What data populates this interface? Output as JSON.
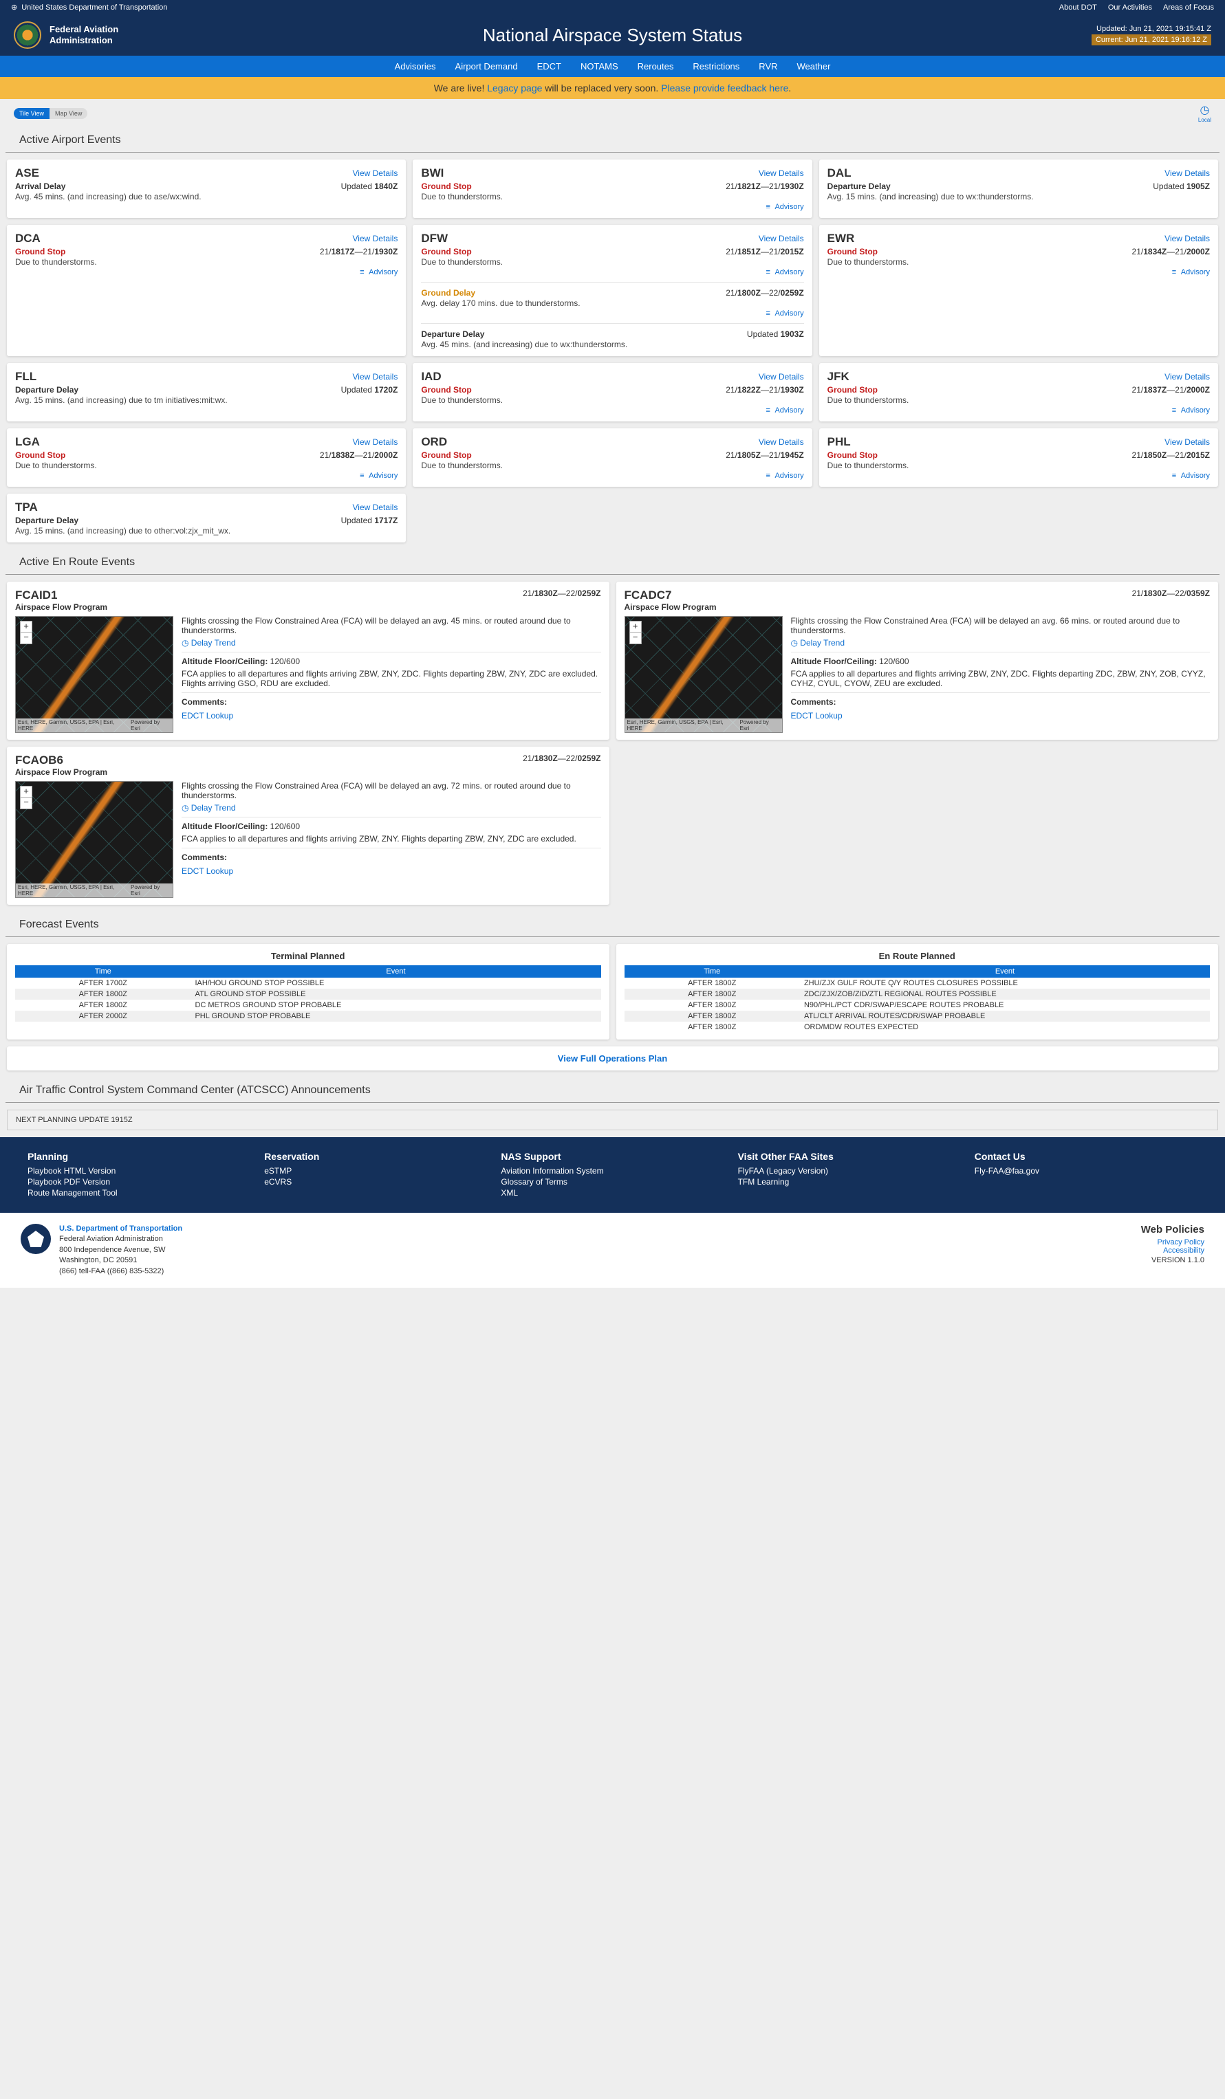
{
  "topbar": {
    "dept": "United States Department of Transportation",
    "links": [
      "About DOT",
      "Our Activities",
      "Areas of Focus"
    ]
  },
  "header": {
    "faa1": "Federal Aviation",
    "faa2": "Administration",
    "title": "National Airspace System Status",
    "updated": "Updated: Jun 21, 2021 19:15:41 Z",
    "current": "Current: Jun 21, 2021 19:16:12 Z"
  },
  "nav": [
    "Advisories",
    "Airport Demand",
    "EDCT",
    "NOTAMS",
    "Reroutes",
    "Restrictions",
    "RVR",
    "Weather"
  ],
  "banner": {
    "t1": "We are live! ",
    "legacy": "Legacy page",
    "t2": " will be replaced very soon. ",
    "feedback": "Please provide feedback here"
  },
  "viewToggle": {
    "tile": "Tile View",
    "map": "Map View",
    "clock": "Local"
  },
  "sections": {
    "airport": "Active Airport Events",
    "enroute": "Active En Route Events",
    "forecast": "Forecast Events",
    "atcscc": "Air Traffic Control System Command Center (ATCSCC) Announcements"
  },
  "viewDetails": "View Details",
  "advisory": "Advisory",
  "airports": [
    {
      "code": "ASE",
      "events": [
        {
          "type": "arr",
          "label": "Arrival Delay",
          "updated": "Updated 1840Z",
          "desc": "Avg. 45 mins. (and increasing) due to ase/wx:wind."
        }
      ]
    },
    {
      "code": "BWI",
      "events": [
        {
          "type": "stop",
          "label": "Ground Stop",
          "time": "21/1821Z—21/1930Z",
          "desc": "Due to thunderstorms.",
          "advisory": true
        }
      ]
    },
    {
      "code": "DAL",
      "events": [
        {
          "type": "dep",
          "label": "Departure Delay",
          "updated": "Updated 1905Z",
          "desc": "Avg. 15 mins. (and increasing) due to wx:thunderstorms."
        }
      ]
    },
    {
      "code": "DCA",
      "events": [
        {
          "type": "stop",
          "label": "Ground Stop",
          "time": "21/1817Z—21/1930Z",
          "desc": "Due to thunderstorms.",
          "advisory": true
        }
      ]
    },
    {
      "code": "DFW",
      "events": [
        {
          "type": "stop",
          "label": "Ground Stop",
          "time": "21/1851Z—21/2015Z",
          "desc": "Due to thunderstorms.",
          "advisory": true
        },
        {
          "type": "delay",
          "label": "Ground Delay",
          "time": "21/1800Z—22/0259Z",
          "desc": "Avg. delay 170 mins. due to thunderstorms.",
          "advisory": true
        },
        {
          "type": "dep",
          "label": "Departure Delay",
          "updated": "Updated 1903Z",
          "desc": "Avg. 45 mins. (and increasing) due to wx:thunderstorms."
        }
      ]
    },
    {
      "code": "EWR",
      "events": [
        {
          "type": "stop",
          "label": "Ground Stop",
          "time": "21/1834Z—21/2000Z",
          "desc": "Due to thunderstorms.",
          "advisory": true
        }
      ]
    },
    {
      "code": "FLL",
      "events": [
        {
          "type": "dep",
          "label": "Departure Delay",
          "updated": "Updated 1720Z",
          "desc": "Avg. 15 mins. (and increasing) due to tm initiatives:mit:wx."
        }
      ]
    },
    {
      "code": "IAD",
      "events": [
        {
          "type": "stop",
          "label": "Ground Stop",
          "time": "21/1822Z—21/1930Z",
          "desc": "Due to thunderstorms.",
          "advisory": true
        }
      ]
    },
    {
      "code": "JFK",
      "events": [
        {
          "type": "stop",
          "label": "Ground Stop",
          "time": "21/1837Z—21/2000Z",
          "desc": "Due to thunderstorms.",
          "advisory": true
        }
      ]
    },
    {
      "code": "LGA",
      "events": [
        {
          "type": "stop",
          "label": "Ground Stop",
          "time": "21/1838Z—21/2000Z",
          "desc": "Due to thunderstorms.",
          "advisory": true
        }
      ]
    },
    {
      "code": "ORD",
      "events": [
        {
          "type": "stop",
          "label": "Ground Stop",
          "time": "21/1805Z—21/1945Z",
          "desc": "Due to thunderstorms.",
          "advisory": true
        }
      ]
    },
    {
      "code": "PHL",
      "events": [
        {
          "type": "stop",
          "label": "Ground Stop",
          "time": "21/1850Z—21/2015Z",
          "desc": "Due to thunderstorms.",
          "advisory": true
        }
      ]
    },
    {
      "code": "TPA",
      "events": [
        {
          "type": "dep",
          "label": "Departure Delay",
          "updated": "Updated 1717Z",
          "desc": "Avg. 15 mins. (and increasing) due to other:vol:zjx_mit_wx."
        }
      ],
      "single": true
    }
  ],
  "enroute": [
    {
      "id": "FCAID1",
      "sub": "Airspace Flow Program",
      "time": "21/1830Z—22/0259Z",
      "desc": "Flights crossing the Flow Constrained Area (FCA) will be delayed an avg. 45 mins. or routed around due to thunderstorms.",
      "alt": "Altitude Floor/Ceiling: 120/600",
      "applies": "FCA applies to all departures and flights arriving ZBW, ZNY, ZDC. Flights departing ZBW, ZNY, ZDC are excluded. Flights arriving GSO, RDU are excluded."
    },
    {
      "id": "FCADC7",
      "sub": "Airspace Flow Program",
      "time": "21/1830Z—22/0359Z",
      "desc": "Flights crossing the Flow Constrained Area (FCA) will be delayed an avg. 66 mins. or routed around due to thunderstorms.",
      "alt": "Altitude Floor/Ceiling: 120/600",
      "applies": "FCA applies to all departures and flights arriving ZBW, ZNY, ZDC. Flights departing ZDC, ZBW, ZNY, ZOB, CYYZ, CYHZ, CYUL, CYOW, ZEU are excluded."
    },
    {
      "id": "FCAOB6",
      "sub": "Airspace Flow Program",
      "time": "21/1830Z—22/0259Z",
      "desc": "Flights crossing the Flow Constrained Area (FCA) will be delayed an avg. 72 mins. or routed around due to thunderstorms.",
      "alt": "Altitude Floor/Ceiling: 120/600",
      "applies": "FCA applies to all departures and flights arriving ZBW, ZNY. Flights departing ZBW, ZNY, ZDC are excluded."
    }
  ],
  "enrouteLabels": {
    "delayTrend": "Delay Trend",
    "comments": "Comments:",
    "edct": "EDCT Lookup",
    "mapCreditL": "Esri, HERE, Garmin, USGS, EPA | Esri, HERE",
    "mapCreditR": "Powered by Esri"
  },
  "forecast": {
    "terminal": {
      "title": "Terminal Planned",
      "th": [
        "Time",
        "Event"
      ],
      "rows": [
        [
          "AFTER 1700Z",
          "IAH/HOU GROUND STOP POSSIBLE"
        ],
        [
          "AFTER 1800Z",
          "ATL GROUND STOP POSSIBLE"
        ],
        [
          "AFTER 1800Z",
          "DC METROS GROUND STOP PROBABLE"
        ],
        [
          "AFTER 2000Z",
          "PHL GROUND STOP PROBABLE"
        ]
      ]
    },
    "enroute": {
      "title": "En Route Planned",
      "th": [
        "Time",
        "Event"
      ],
      "rows": [
        [
          "AFTER 1800Z",
          "ZHU/ZJX GULF ROUTE Q/Y ROUTES CLOSURES POSSIBLE"
        ],
        [
          "AFTER 1800Z",
          "ZDC/ZJX/ZOB/ZID/ZTL REGIONAL ROUTES POSSIBLE"
        ],
        [
          "AFTER 1800Z",
          "N90/PHL/PCT CDR/SWAP/ESCAPE ROUTES PROBABLE"
        ],
        [
          "AFTER 1800Z",
          "ATL/CLT ARRIVAL ROUTES/CDR/SWAP PROBABLE"
        ],
        [
          "AFTER 1800Z",
          "ORD/MDW ROUTES EXPECTED"
        ]
      ]
    }
  },
  "fullOps": "View Full Operations Plan",
  "announce": "NEXT PLANNING UPDATE 1915Z",
  "footer": {
    "cols": [
      {
        "title": "Planning",
        "links": [
          "Playbook HTML Version",
          "Playbook PDF Version",
          "Route Management Tool"
        ]
      },
      {
        "title": "Reservation",
        "links": [
          "eSTMP",
          "eCVRS"
        ]
      },
      {
        "title": "NAS Support",
        "links": [
          "Aviation Information System",
          "Glossary of Terms",
          "XML"
        ]
      },
      {
        "title": "Visit Other FAA Sites",
        "links": [
          "FlyFAA (Legacy Version)",
          "TFM Learning"
        ]
      },
      {
        "title": "Contact Us",
        "links": [
          "Fly-FAA@faa.gov"
        ]
      }
    ],
    "addr": {
      "dept": "U.S. Department of Transportation",
      "agency": "Federal Aviation Administration",
      "street": "800 Independence Avenue, SW",
      "city": "Washington, DC 20591",
      "phone": "(866) tell-FAA ((866) 835-5322)"
    },
    "policies": {
      "title": "Web Policies",
      "links": [
        "Privacy Policy",
        "Accessibility"
      ],
      "version": "VERSION 1.1.0"
    }
  }
}
